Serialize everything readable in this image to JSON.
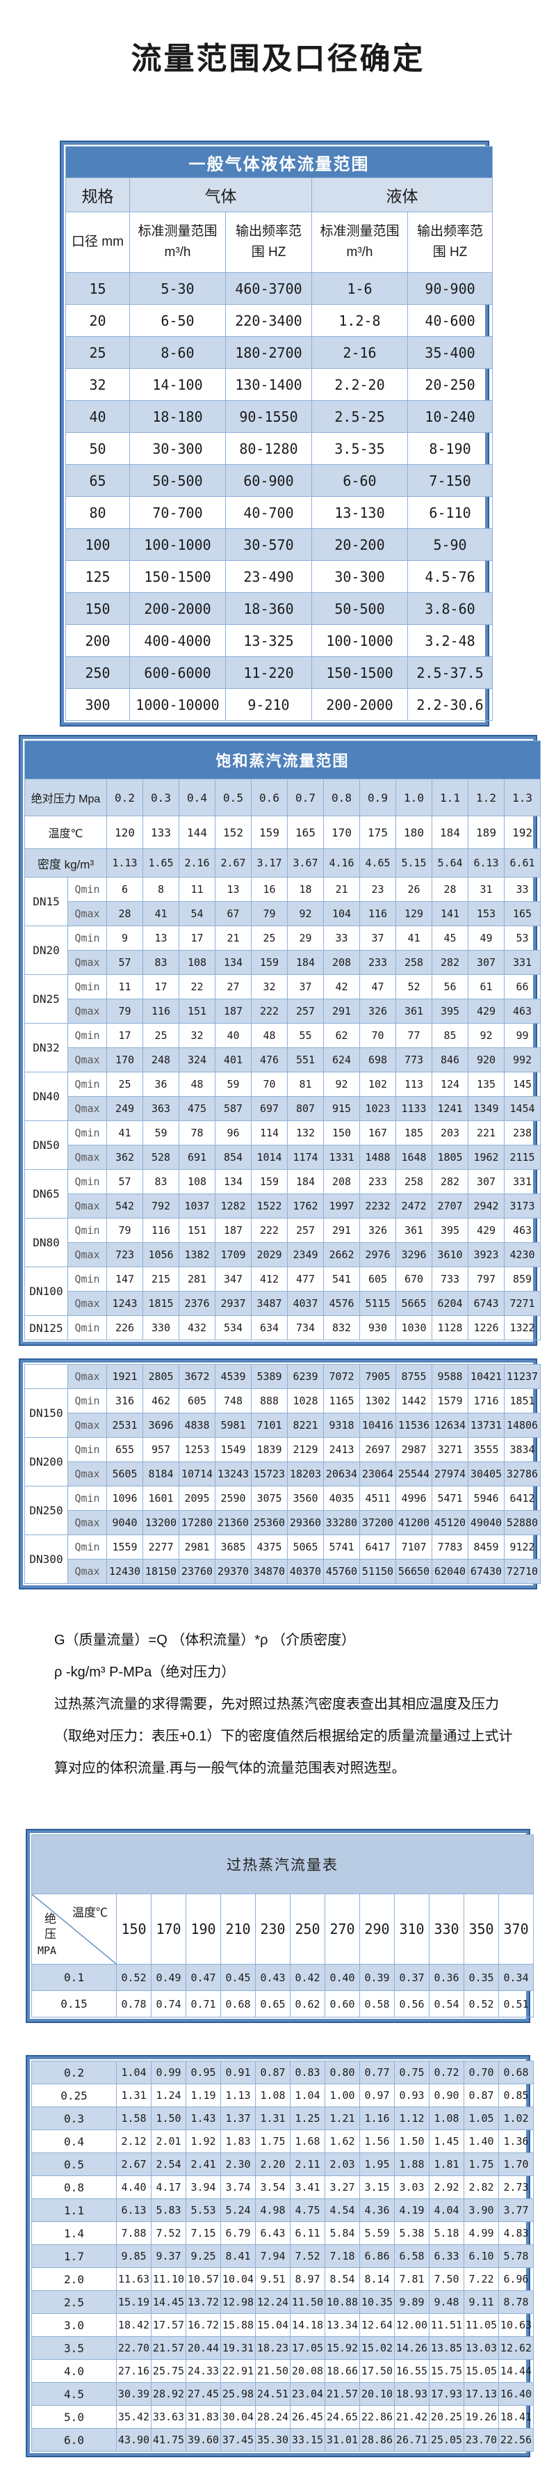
{
  "page_title": "流量范围及口径确定",
  "colors": {
    "header_blue": "#4f81bb",
    "stripe_blue": "#c9d8ea",
    "group_header_blue": "#d4dfee",
    "band_blue": "#b9cce3",
    "frame_blue": "#5a88bf",
    "frame_dark": "#2e5d99",
    "cell_border": "#8db1d8"
  },
  "table1": {
    "title": "一般气体液体流量范围",
    "spec_label": "规格",
    "gas_label": "气体",
    "liquid_label": "液体",
    "diameter_label": "口径 mm",
    "std_range_label": "标准测量范围",
    "std_range_unit": "m³/h",
    "freq_line1": "输出频率范",
    "freq_line2": "围 HZ",
    "rows": [
      {
        "dn": "15",
        "gas_range": "5-30",
        "gas_freq": "460-3700",
        "liq_range": "1-6",
        "liq_freq": "90-900"
      },
      {
        "dn": "20",
        "gas_range": "6-50",
        "gas_freq": "220-3400",
        "liq_range": "1.2-8",
        "liq_freq": "40-600"
      },
      {
        "dn": "25",
        "gas_range": "8-60",
        "gas_freq": "180-2700",
        "liq_range": "2-16",
        "liq_freq": "35-400"
      },
      {
        "dn": "32",
        "gas_range": "14-100",
        "gas_freq": "130-1400",
        "liq_range": "2.2-20",
        "liq_freq": "20-250"
      },
      {
        "dn": "40",
        "gas_range": "18-180",
        "gas_freq": "90-1550",
        "liq_range": "2.5-25",
        "liq_freq": "10-240"
      },
      {
        "dn": "50",
        "gas_range": "30-300",
        "gas_freq": "80-1280",
        "liq_range": "3.5-35",
        "liq_freq": "8-190"
      },
      {
        "dn": "65",
        "gas_range": "50-500",
        "gas_freq": "60-900",
        "liq_range": "6-60",
        "liq_freq": "7-150"
      },
      {
        "dn": "80",
        "gas_range": "70-700",
        "gas_freq": "40-700",
        "liq_range": "13-130",
        "liq_freq": "6-110"
      },
      {
        "dn": "100",
        "gas_range": "100-1000",
        "gas_freq": "30-570",
        "liq_range": "20-200",
        "liq_freq": "5-90"
      },
      {
        "dn": "125",
        "gas_range": "150-1500",
        "gas_freq": "23-490",
        "liq_range": "30-300",
        "liq_freq": "4.5-76"
      },
      {
        "dn": "150",
        "gas_range": "200-2000",
        "gas_freq": "18-360",
        "liq_range": "50-500",
        "liq_freq": "3.8-60"
      },
      {
        "dn": "200",
        "gas_range": "400-4000",
        "gas_freq": "13-325",
        "liq_range": "100-1000",
        "liq_freq": "3.2-48"
      },
      {
        "dn": "250",
        "gas_range": "600-6000",
        "gas_freq": "11-220",
        "liq_range": "150-1500",
        "liq_freq": "2.5-37.5"
      },
      {
        "dn": "300",
        "gas_range": "1000-10000",
        "gas_freq": "9-210",
        "liq_range": "200-2000",
        "liq_freq": "2.2-30.6"
      }
    ]
  },
  "table2": {
    "title": "饱和蒸汽流量范围",
    "pressure_label": "绝对压力 Mpa",
    "pressure": [
      "0.2",
      "0.3",
      "0.4",
      "0.5",
      "0.6",
      "0.7",
      "0.8",
      "0.9",
      "1.0",
      "1.1",
      "1.2",
      "1.3"
    ],
    "temperature_label": "温度℃",
    "temperature": [
      "120",
      "133",
      "144",
      "152",
      "159",
      "165",
      "170",
      "175",
      "180",
      "184",
      "189",
      "192"
    ],
    "density_label": "密度 kg/m³",
    "density": [
      "1.13",
      "1.65",
      "2.16",
      "2.67",
      "3.17",
      "3.67",
      "4.16",
      "4.65",
      "5.15",
      "5.64",
      "6.13",
      "6.61"
    ],
    "qmin_label": "Qmin",
    "qmax_label": "Qmax",
    "block1": [
      {
        "dn": "DN15",
        "qmin": [
          "6",
          "8",
          "11",
          "13",
          "16",
          "18",
          "21",
          "23",
          "26",
          "28",
          "31",
          "33"
        ],
        "qmax": [
          "28",
          "41",
          "54",
          "67",
          "79",
          "92",
          "104",
          "116",
          "129",
          "141",
          "153",
          "165"
        ]
      },
      {
        "dn": "DN20",
        "qmin": [
          "9",
          "13",
          "17",
          "21",
          "25",
          "29",
          "33",
          "37",
          "41",
          "45",
          "49",
          "53"
        ],
        "qmax": [
          "57",
          "83",
          "108",
          "134",
          "159",
          "184",
          "208",
          "233",
          "258",
          "282",
          "307",
          "331"
        ]
      },
      {
        "dn": "DN25",
        "qmin": [
          "11",
          "17",
          "22",
          "27",
          "32",
          "37",
          "42",
          "47",
          "52",
          "56",
          "61",
          "66"
        ],
        "qmax": [
          "79",
          "116",
          "151",
          "187",
          "222",
          "257",
          "291",
          "326",
          "361",
          "395",
          "429",
          "463"
        ]
      },
      {
        "dn": "DN32",
        "qmin": [
          "17",
          "25",
          "32",
          "40",
          "48",
          "55",
          "62",
          "70",
          "77",
          "85",
          "92",
          "99"
        ],
        "qmax": [
          "170",
          "248",
          "324",
          "401",
          "476",
          "551",
          "624",
          "698",
          "773",
          "846",
          "920",
          "992"
        ]
      },
      {
        "dn": "DN40",
        "qmin": [
          "25",
          "36",
          "48",
          "59",
          "70",
          "81",
          "92",
          "102",
          "113",
          "124",
          "135",
          "145"
        ],
        "qmax": [
          "249",
          "363",
          "475",
          "587",
          "697",
          "807",
          "915",
          "1023",
          "1133",
          "1241",
          "1349",
          "1454"
        ]
      },
      {
        "dn": "DN50",
        "qmin": [
          "41",
          "59",
          "78",
          "96",
          "114",
          "132",
          "150",
          "167",
          "185",
          "203",
          "221",
          "238"
        ],
        "qmax": [
          "362",
          "528",
          "691",
          "854",
          "1014",
          "1174",
          "1331",
          "1488",
          "1648",
          "1805",
          "1962",
          "2115"
        ]
      },
      {
        "dn": "DN65",
        "qmin": [
          "57",
          "83",
          "108",
          "134",
          "159",
          "184",
          "208",
          "233",
          "258",
          "282",
          "307",
          "331"
        ],
        "qmax": [
          "542",
          "792",
          "1037",
          "1282",
          "1522",
          "1762",
          "1997",
          "2232",
          "2472",
          "2707",
          "2942",
          "3173"
        ]
      },
      {
        "dn": "DN80",
        "qmin": [
          "79",
          "116",
          "151",
          "187",
          "222",
          "257",
          "291",
          "326",
          "361",
          "395",
          "429",
          "463"
        ],
        "qmax": [
          "723",
          "1056",
          "1382",
          "1709",
          "2029",
          "2349",
          "2662",
          "2976",
          "3296",
          "3610",
          "3923",
          "4230"
        ]
      },
      {
        "dn": "DN100",
        "qmin": [
          "147",
          "215",
          "281",
          "347",
          "412",
          "477",
          "541",
          "605",
          "670",
          "733",
          "797",
          "859"
        ],
        "qmax": [
          "1243",
          "1815",
          "2376",
          "2937",
          "3487",
          "4037",
          "4576",
          "5115",
          "5665",
          "6204",
          "6743",
          "7271"
        ]
      },
      {
        "dn": "DN125",
        "qmin": [
          "226",
          "330",
          "432",
          "534",
          "634",
          "734",
          "832",
          "930",
          "1030",
          "1128",
          "1226",
          "1322"
        ]
      }
    ],
    "block2": {
      "orphan_qmax": [
        "1921",
        "2805",
        "3672",
        "4539",
        "5389",
        "6239",
        "7072",
        "7905",
        "8755",
        "9588",
        "10421",
        "11237"
      ],
      "groups": [
        {
          "dn": "DN150",
          "qmin": [
            "316",
            "462",
            "605",
            "748",
            "888",
            "1028",
            "1165",
            "1302",
            "1442",
            "1579",
            "1716",
            "1851"
          ],
          "qmax": [
            "2531",
            "3696",
            "4838",
            "5981",
            "7101",
            "8221",
            "9318",
            "10416",
            "11536",
            "12634",
            "13731",
            "14806"
          ]
        },
        {
          "dn": "DN200",
          "qmin": [
            "655",
            "957",
            "1253",
            "1549",
            "1839",
            "2129",
            "2413",
            "2697",
            "2987",
            "3271",
            "3555",
            "3834"
          ],
          "qmax": [
            "5605",
            "8184",
            "10714",
            "13243",
            "15723",
            "18203",
            "20634",
            "23064",
            "25544",
            "27974",
            "30405",
            "32786"
          ]
        },
        {
          "dn": "DN250",
          "qmin": [
            "1096",
            "1601",
            "2095",
            "2590",
            "3075",
            "3560",
            "4035",
            "4511",
            "4996",
            "5471",
            "5946",
            "6412"
          ],
          "qmax": [
            "9040",
            "13200",
            "17280",
            "21360",
            "25360",
            "29360",
            "33280",
            "37200",
            "41200",
            "45120",
            "49040",
            "52880"
          ]
        },
        {
          "dn": "DN300",
          "qmin": [
            "1559",
            "2277",
            "2981",
            "3685",
            "4375",
            "5065",
            "5741",
            "6417",
            "7107",
            "7783",
            "8459",
            "9122"
          ],
          "qmax": [
            "12430",
            "18150",
            "23760",
            "29370",
            "34870",
            "40370",
            "45760",
            "51150",
            "56650",
            "62040",
            "67430",
            "72710"
          ]
        }
      ]
    }
  },
  "notes": {
    "formula": "G（质量流量）=Q （体积流量）*ρ （介质密度）",
    "units": "ρ -kg/m³ P-MPa（绝对压力）",
    "paragraph": "过热蒸汽流量的求得需要，先对照过热蒸汽密度表查出其相应温度及压力（取绝对压力：表压+0.1）下的密度值然后根据给定的质量流量通过上式计算对应的体积流量.再与一般气体的流量范围表对照选型。"
  },
  "table3": {
    "title": "过热蒸汽流量表",
    "corner_temp": "温度℃",
    "corner_pressure": "绝压",
    "corner_unit": "MPA",
    "temps": [
      "150",
      "170",
      "190",
      "210",
      "230",
      "250",
      "270",
      "290",
      "310",
      "330",
      "350",
      "370"
    ],
    "block1_rows": [
      {
        "p": "0.1",
        "v": [
          "0.52",
          "0.49",
          "0.47",
          "0.45",
          "0.43",
          "0.42",
          "0.40",
          "0.39",
          "0.37",
          "0.36",
          "0.35",
          "0.34"
        ]
      },
      {
        "p": "0.15",
        "v": [
          "0.78",
          "0.74",
          "0.71",
          "0.68",
          "0.65",
          "0.62",
          "0.60",
          "0.58",
          "0.56",
          "0.54",
          "0.52",
          "0.51"
        ]
      }
    ],
    "block2_rows": [
      {
        "p": "0.2",
        "v": [
          "1.04",
          "0.99",
          "0.95",
          "0.91",
          "0.87",
          "0.83",
          "0.80",
          "0.77",
          "0.75",
          "0.72",
          "0.70",
          "0.68"
        ]
      },
      {
        "p": "0.25",
        "v": [
          "1.31",
          "1.24",
          "1.19",
          "1.13",
          "1.08",
          "1.04",
          "1.00",
          "0.97",
          "0.93",
          "0.90",
          "0.87",
          "0.85"
        ]
      },
      {
        "p": "0.3",
        "v": [
          "1.58",
          "1.50",
          "1.43",
          "1.37",
          "1.31",
          "1.25",
          "1.21",
          "1.16",
          "1.12",
          "1.08",
          "1.05",
          "1.02"
        ]
      },
      {
        "p": "0.4",
        "v": [
          "2.12",
          "2.01",
          "1.92",
          "1.83",
          "1.75",
          "1.68",
          "1.62",
          "1.56",
          "1.50",
          "1.45",
          "1.40",
          "1.36"
        ]
      },
      {
        "p": "0.5",
        "v": [
          "2.67",
          "2.54",
          "2.41",
          "2.30",
          "2.20",
          "2.11",
          "2.03",
          "1.95",
          "1.88",
          "1.81",
          "1.75",
          "1.70"
        ]
      },
      {
        "p": "0.8",
        "v": [
          "4.40",
          "4.17",
          "3.94",
          "3.74",
          "3.54",
          "3.41",
          "3.27",
          "3.15",
          "3.03",
          "2.92",
          "2.82",
          "2.73"
        ]
      },
      {
        "p": "1.1",
        "v": [
          "6.13",
          "5.83",
          "5.53",
          "5.24",
          "4.98",
          "4.75",
          "4.54",
          "4.36",
          "4.19",
          "4.04",
          "3.90",
          "3.77"
        ]
      },
      {
        "p": "1.4",
        "v": [
          "7.88",
          "7.52",
          "7.15",
          "6.79",
          "6.43",
          "6.11",
          "5.84",
          "5.59",
          "5.38",
          "5.18",
          "4.99",
          "4.83"
        ]
      },
      {
        "p": "1.7",
        "v": [
          "9.85",
          "9.37",
          "9.25",
          "8.41",
          "7.94",
          "7.52",
          "7.18",
          "6.86",
          "6.58",
          "6.33",
          "6.10",
          "5.78"
        ]
      },
      {
        "p": "2.0",
        "v": [
          "11.63",
          "11.10",
          "10.57",
          "10.04",
          "9.51",
          "8.97",
          "8.54",
          "8.14",
          "7.81",
          "7.50",
          "7.22",
          "6.96"
        ]
      },
      {
        "p": "2.5",
        "v": [
          "15.19",
          "14.45",
          "13.72",
          "12.98",
          "12.24",
          "11.50",
          "10.88",
          "10.35",
          "9.89",
          "9.48",
          "9.11",
          "8.78"
        ]
      },
      {
        "p": "3.0",
        "v": [
          "18.42",
          "17.57",
          "16.72",
          "15.88",
          "15.04",
          "14.18",
          "13.34",
          "12.64",
          "12.00",
          "11.51",
          "11.05",
          "10.63"
        ]
      },
      {
        "p": "3.5",
        "v": [
          "22.70",
          "21.57",
          "20.44",
          "19.31",
          "18.23",
          "17.05",
          "15.92",
          "15.02",
          "14.26",
          "13.85",
          "13.03",
          "12.62"
        ]
      },
      {
        "p": "4.0",
        "v": [
          "27.16",
          "25.75",
          "24.33",
          "22.91",
          "21.50",
          "20.08",
          "18.66",
          "17.50",
          "16.55",
          "15.75",
          "15.05",
          "14.44"
        ]
      },
      {
        "p": "4.5",
        "v": [
          "30.39",
          "28.92",
          "27.45",
          "25.98",
          "24.51",
          "23.04",
          "21.57",
          "20.10",
          "18.93",
          "17.93",
          "17.13",
          "16.40"
        ]
      },
      {
        "p": "5.0",
        "v": [
          "35.42",
          "33.63",
          "31.83",
          "30.04",
          "28.24",
          "26.45",
          "24.65",
          "22.86",
          "21.42",
          "20.25",
          "19.26",
          "18.41"
        ]
      },
      {
        "p": "6.0",
        "v": [
          "43.90",
          "41.75",
          "39.60",
          "37.45",
          "35.30",
          "33.15",
          "31.01",
          "28.86",
          "26.71",
          "25.05",
          "23.70",
          "22.56"
        ]
      }
    ]
  }
}
